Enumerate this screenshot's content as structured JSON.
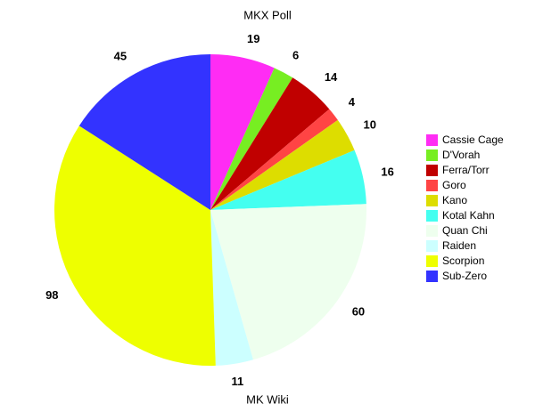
{
  "chart_data": {
    "type": "pie",
    "title": "MKX Poll",
    "xlabel": "MK Wiki",
    "categories": [
      "Cassie Cage",
      "D'Vorah",
      "Ferra/Torr",
      "Goro",
      "Kano",
      "Kotal Kahn",
      "Quan Chi",
      "Raiden",
      "Scorpion",
      "Sub-Zero"
    ],
    "values": [
      19,
      6,
      14,
      4,
      10,
      16,
      60,
      11,
      98,
      45
    ],
    "colors": [
      "#ff2cf4",
      "#77ee22",
      "#c00000",
      "#ff4444",
      "#dddd00",
      "#44fff0",
      "#eeffee",
      "#ccffff",
      "#eeff00",
      "#3333ff"
    ],
    "legend": "right"
  }
}
